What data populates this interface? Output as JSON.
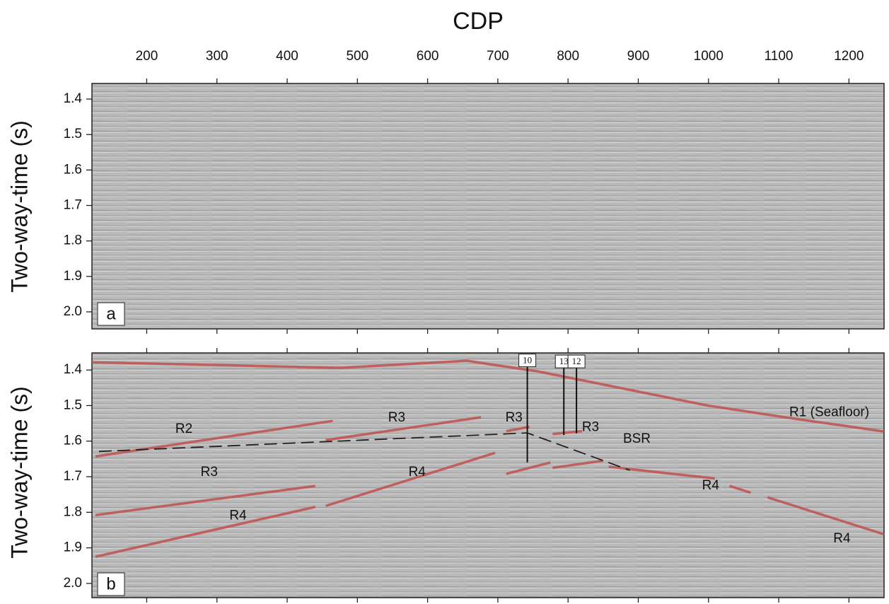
{
  "chart_data": [
    {
      "type": "seismic",
      "title": "CDP",
      "panel": "a",
      "ylabel": "Two-way-time (s)",
      "xlim": [
        122,
        1250
      ],
      "ylim": [
        2.048,
        1.356
      ],
      "xticks": [
        200,
        300,
        400,
        500,
        600,
        700,
        800,
        900,
        1000,
        1100,
        1200
      ],
      "yticks": [
        1.4,
        1.5,
        1.6,
        1.7,
        1.8,
        1.9,
        {
          "value": 2.0,
          "label": "2.0"
        }
      ]
    },
    {
      "type": "seismic",
      "panel": "b",
      "ylabel": "Two-way-time (s)",
      "xlim": [
        122,
        1250
      ],
      "ylim": [
        2.04,
        1.352
      ],
      "xticks": [
        200,
        300,
        400,
        500,
        600,
        700,
        800,
        900,
        1000,
        1100,
        1200
      ],
      "yticks": [
        1.4,
        1.5,
        1.6,
        1.7,
        1.8,
        1.9,
        {
          "value": 2.0,
          "label": "2.0"
        }
      ],
      "series": [
        {
          "color": "#c0504d",
          "style": "solid",
          "x": [
            122,
            475,
            656,
            696,
            757,
            858,
            999,
            1109,
            1250
          ],
          "values": [
            1.378,
            1.394,
            1.374,
            1.386,
            1.404,
            1.444,
            1.5,
            1.533,
            1.573
          ]
        },
        {
          "color": "#c0504d",
          "style": "solid",
          "x": [
            127,
            465
          ],
          "values": [
            1.643,
            1.543
          ]
        },
        {
          "color": "#c0504d",
          "style": "solid",
          "x": [
            127,
            440
          ],
          "values": [
            1.808,
            1.726
          ]
        },
        {
          "color": "#c0504d",
          "style": "solid",
          "x": [
            455,
            676
          ],
          "values": [
            1.597,
            1.533
          ]
        },
        {
          "color": "#c0504d",
          "style": "solid",
          "x": [
            712,
            745
          ],
          "values": [
            1.572,
            1.56
          ]
        },
        {
          "color": "#c0504d",
          "style": "solid",
          "x": [
            778,
            820
          ],
          "values": [
            1.58,
            1.572
          ]
        },
        {
          "color": "#c0504d",
          "style": "solid",
          "x": [
            127,
            440
          ],
          "values": [
            1.925,
            1.785
          ]
        },
        {
          "color": "#c0504d",
          "style": "solid",
          "x": [
            455,
            696
          ],
          "values": [
            1.782,
            1.633
          ]
        },
        {
          "color": "#c0504d",
          "style": "solid",
          "x": [
            712,
            775
          ],
          "values": [
            1.692,
            1.66
          ]
        },
        {
          "color": "#c0504d",
          "style": "solid",
          "x": [
            778,
            850
          ],
          "values": [
            1.675,
            1.655
          ]
        },
        {
          "color": "#c0504d",
          "style": "solid",
          "x": [
            858,
            1009
          ],
          "values": [
            1.672,
            1.705
          ]
        },
        {
          "color": "#c0504d",
          "style": "solid",
          "x": [
            1030,
            1060
          ],
          "values": [
            1.726,
            1.745
          ]
        },
        {
          "color": "#c0504d",
          "style": "solid",
          "x": [
            1084,
            1250
          ],
          "values": [
            1.758,
            1.862
          ]
        },
        {
          "color": "#222222",
          "style": "dashed",
          "x": [
            132,
            742,
            888
          ],
          "values": [
            1.629,
            1.577,
            1.682
          ]
        }
      ],
      "wells": [
        {
          "label": "10",
          "x": 742,
          "values": [
            1.375,
            1.66
          ]
        },
        {
          "label": "13",
          "x": 794,
          "values": [
            1.378,
            1.583
          ]
        },
        {
          "label": "12",
          "x": 812,
          "values": [
            1.378,
            1.578
          ]
        }
      ],
      "annotations": [
        {
          "text": "R1 (Seafloor)",
          "x": 1172,
          "y": 1.52
        },
        {
          "text": "R2",
          "x": 253,
          "y": 1.567
        },
        {
          "text": "R3",
          "x": 289,
          "y": 1.688
        },
        {
          "text": "R3",
          "x": 556,
          "y": 1.535
        },
        {
          "text": "R3",
          "x": 723,
          "y": 1.535
        },
        {
          "text": "R3",
          "x": 832,
          "y": 1.562
        },
        {
          "text": "BSR",
          "x": 898,
          "y": 1.595
        },
        {
          "text": "R4",
          "x": 585,
          "y": 1.688
        },
        {
          "text": "R4",
          "x": 330,
          "y": 1.81
        },
        {
          "text": "R4",
          "x": 1003,
          "y": 1.726
        },
        {
          "text": "R4",
          "x": 1190,
          "y": 1.875
        }
      ]
    }
  ]
}
